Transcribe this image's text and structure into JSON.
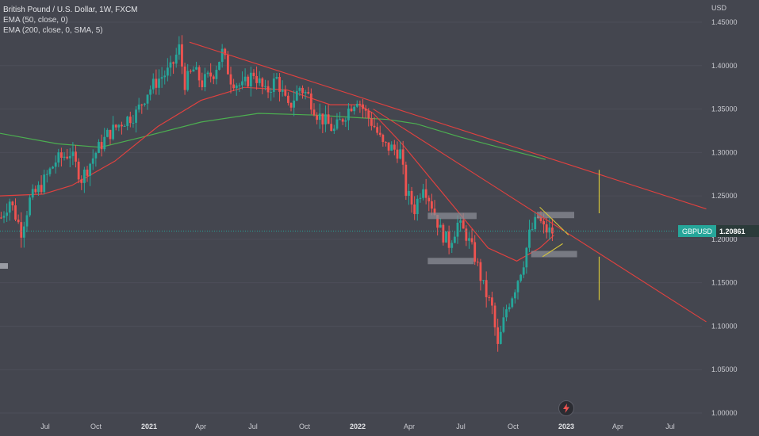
{
  "legend": {
    "title": "British Pound / U.S. Dollar, 1W, FXCM",
    "study1": "EMA (50, close, 0)",
    "study2": "EMA (200, close, 0, SMA, 5)"
  },
  "price_tag": {
    "symbol": "GBPUSD",
    "price": "1.20861"
  },
  "icons": {
    "flash": "lightning-icon"
  },
  "colors": {
    "background": "#44464f",
    "up": "#26a69a",
    "down": "#ef5350",
    "ema50": "#e0413f",
    "ema200": "#4caf50",
    "trendline": "#e0413f",
    "projection": "#d4c43b",
    "zone": "#8a8c94"
  },
  "chart_data": {
    "type": "candlestick",
    "title": "British Pound / U.S. Dollar, 1W, FXCM",
    "currency_label": "USD",
    "y_ticks": [
      "1.45000",
      "1.40000",
      "1.35000",
      "1.30000",
      "1.25000",
      "1.20000",
      "1.15000",
      "1.10000",
      "1.05000",
      "1.00000"
    ],
    "x_ticks": [
      {
        "label": "Jul",
        "bold": false
      },
      {
        "label": "Oct",
        "bold": false
      },
      {
        "label": "2021",
        "bold": true
      },
      {
        "label": "Apr",
        "bold": false
      },
      {
        "label": "Jul",
        "bold": false
      },
      {
        "label": "Oct",
        "bold": false
      },
      {
        "label": "2022",
        "bold": true
      },
      {
        "label": "Apr",
        "bold": false
      },
      {
        "label": "Jul",
        "bold": false
      },
      {
        "label": "Oct",
        "bold": false
      },
      {
        "label": "2023",
        "bold": true
      },
      {
        "label": "Apr",
        "bold": false
      },
      {
        "label": "Jul",
        "bold": false
      }
    ],
    "last_price": 1.20861,
    "price_path": [
      [
        0,
        1.225
      ],
      [
        3,
        1.245
      ],
      [
        7,
        1.21
      ],
      [
        10,
        1.245
      ],
      [
        14,
        1.262
      ],
      [
        19,
        1.29
      ],
      [
        24,
        1.3
      ],
      [
        28,
        1.27
      ],
      [
        33,
        1.3
      ],
      [
        37,
        1.32
      ],
      [
        42,
        1.335
      ],
      [
        47,
        1.345
      ],
      [
        51,
        1.37
      ],
      [
        55,
        1.385
      ],
      [
        59,
        1.395
      ],
      [
        62,
        1.42
      ],
      [
        64,
        1.38
      ],
      [
        67,
        1.395
      ],
      [
        70,
        1.38
      ],
      [
        74,
        1.392
      ],
      [
        77,
        1.415
      ],
      [
        80,
        1.385
      ],
      [
        84,
        1.375
      ],
      [
        88,
        1.392
      ],
      [
        92,
        1.368
      ],
      [
        96,
        1.385
      ],
      [
        100,
        1.35
      ],
      [
        104,
        1.375
      ],
      [
        107,
        1.365
      ],
      [
        110,
        1.345
      ],
      [
        113,
        1.335
      ],
      [
        116,
        1.325
      ],
      [
        119,
        1.34
      ],
      [
        122,
        1.355
      ],
      [
        124,
        1.363
      ],
      [
        127,
        1.345
      ],
      [
        130,
        1.33
      ],
      [
        133,
        1.308
      ],
      [
        136,
        1.305
      ],
      [
        139,
        1.3
      ],
      [
        141,
        1.255
      ],
      [
        144,
        1.235
      ],
      [
        147,
        1.265
      ],
      [
        150,
        1.24
      ],
      [
        153,
        1.21
      ],
      [
        156,
        1.195
      ],
      [
        159,
        1.218
      ],
      [
        162,
        1.205
      ],
      [
        165,
        1.18
      ],
      [
        168,
        1.145
      ],
      [
        171,
        1.12
      ],
      [
        173,
        1.075
      ],
      [
        176,
        1.12
      ],
      [
        179,
        1.145
      ],
      [
        182,
        1.175
      ],
      [
        184,
        1.205
      ],
      [
        187,
        1.225
      ],
      [
        189,
        1.212
      ],
      [
        191,
        1.209
      ],
      [
        192,
        1.20861
      ]
    ],
    "ema50": [
      [
        0,
        1.25
      ],
      [
        15,
        1.252
      ],
      [
        25,
        1.262
      ],
      [
        40,
        1.29
      ],
      [
        55,
        1.33
      ],
      [
        70,
        1.36
      ],
      [
        85,
        1.375
      ],
      [
        100,
        1.372
      ],
      [
        115,
        1.355
      ],
      [
        125,
        1.355
      ],
      [
        130,
        1.345
      ],
      [
        140,
        1.31
      ],
      [
        150,
        1.27
      ],
      [
        160,
        1.23
      ],
      [
        170,
        1.19
      ],
      [
        180,
        1.175
      ],
      [
        188,
        1.19
      ],
      [
        193,
        1.205
      ]
    ],
    "ema200": [
      [
        0,
        1.322
      ],
      [
        20,
        1.31
      ],
      [
        35,
        1.306
      ],
      [
        50,
        1.318
      ],
      [
        70,
        1.335
      ],
      [
        90,
        1.345
      ],
      [
        110,
        1.343
      ],
      [
        125,
        1.34
      ],
      [
        135,
        1.338
      ],
      [
        145,
        1.333
      ],
      [
        160,
        1.318
      ],
      [
        175,
        1.305
      ],
      [
        190,
        1.292
      ]
    ],
    "trendlines": [
      {
        "from": [
          66,
          1.427
        ],
        "to": [
          246,
          1.235
        ]
      },
      {
        "from": [
          130,
          1.35
        ],
        "to": [
          246,
          1.105
        ]
      },
      {
        "from": [
          188,
          1.237
        ],
        "to": [
          198,
          1.205
        ]
      },
      {
        "from": [
          189,
          1.18
        ],
        "to": [
          196,
          1.195
        ]
      }
    ],
    "zones": [
      {
        "x0": 149,
        "x1": 166,
        "y": 1.227
      },
      {
        "x0": 149,
        "x1": 165,
        "y": 1.175
      },
      {
        "x0": 187,
        "x1": 200,
        "y": 1.228
      },
      {
        "x0": 185,
        "x1": 201,
        "y": 1.183
      }
    ],
    "projections": [
      {
        "x": 204,
        "y_from": 1.28,
        "y_to": 1.23
      },
      {
        "x": 204,
        "y_from": 1.18,
        "y_to": 1.13
      }
    ]
  }
}
